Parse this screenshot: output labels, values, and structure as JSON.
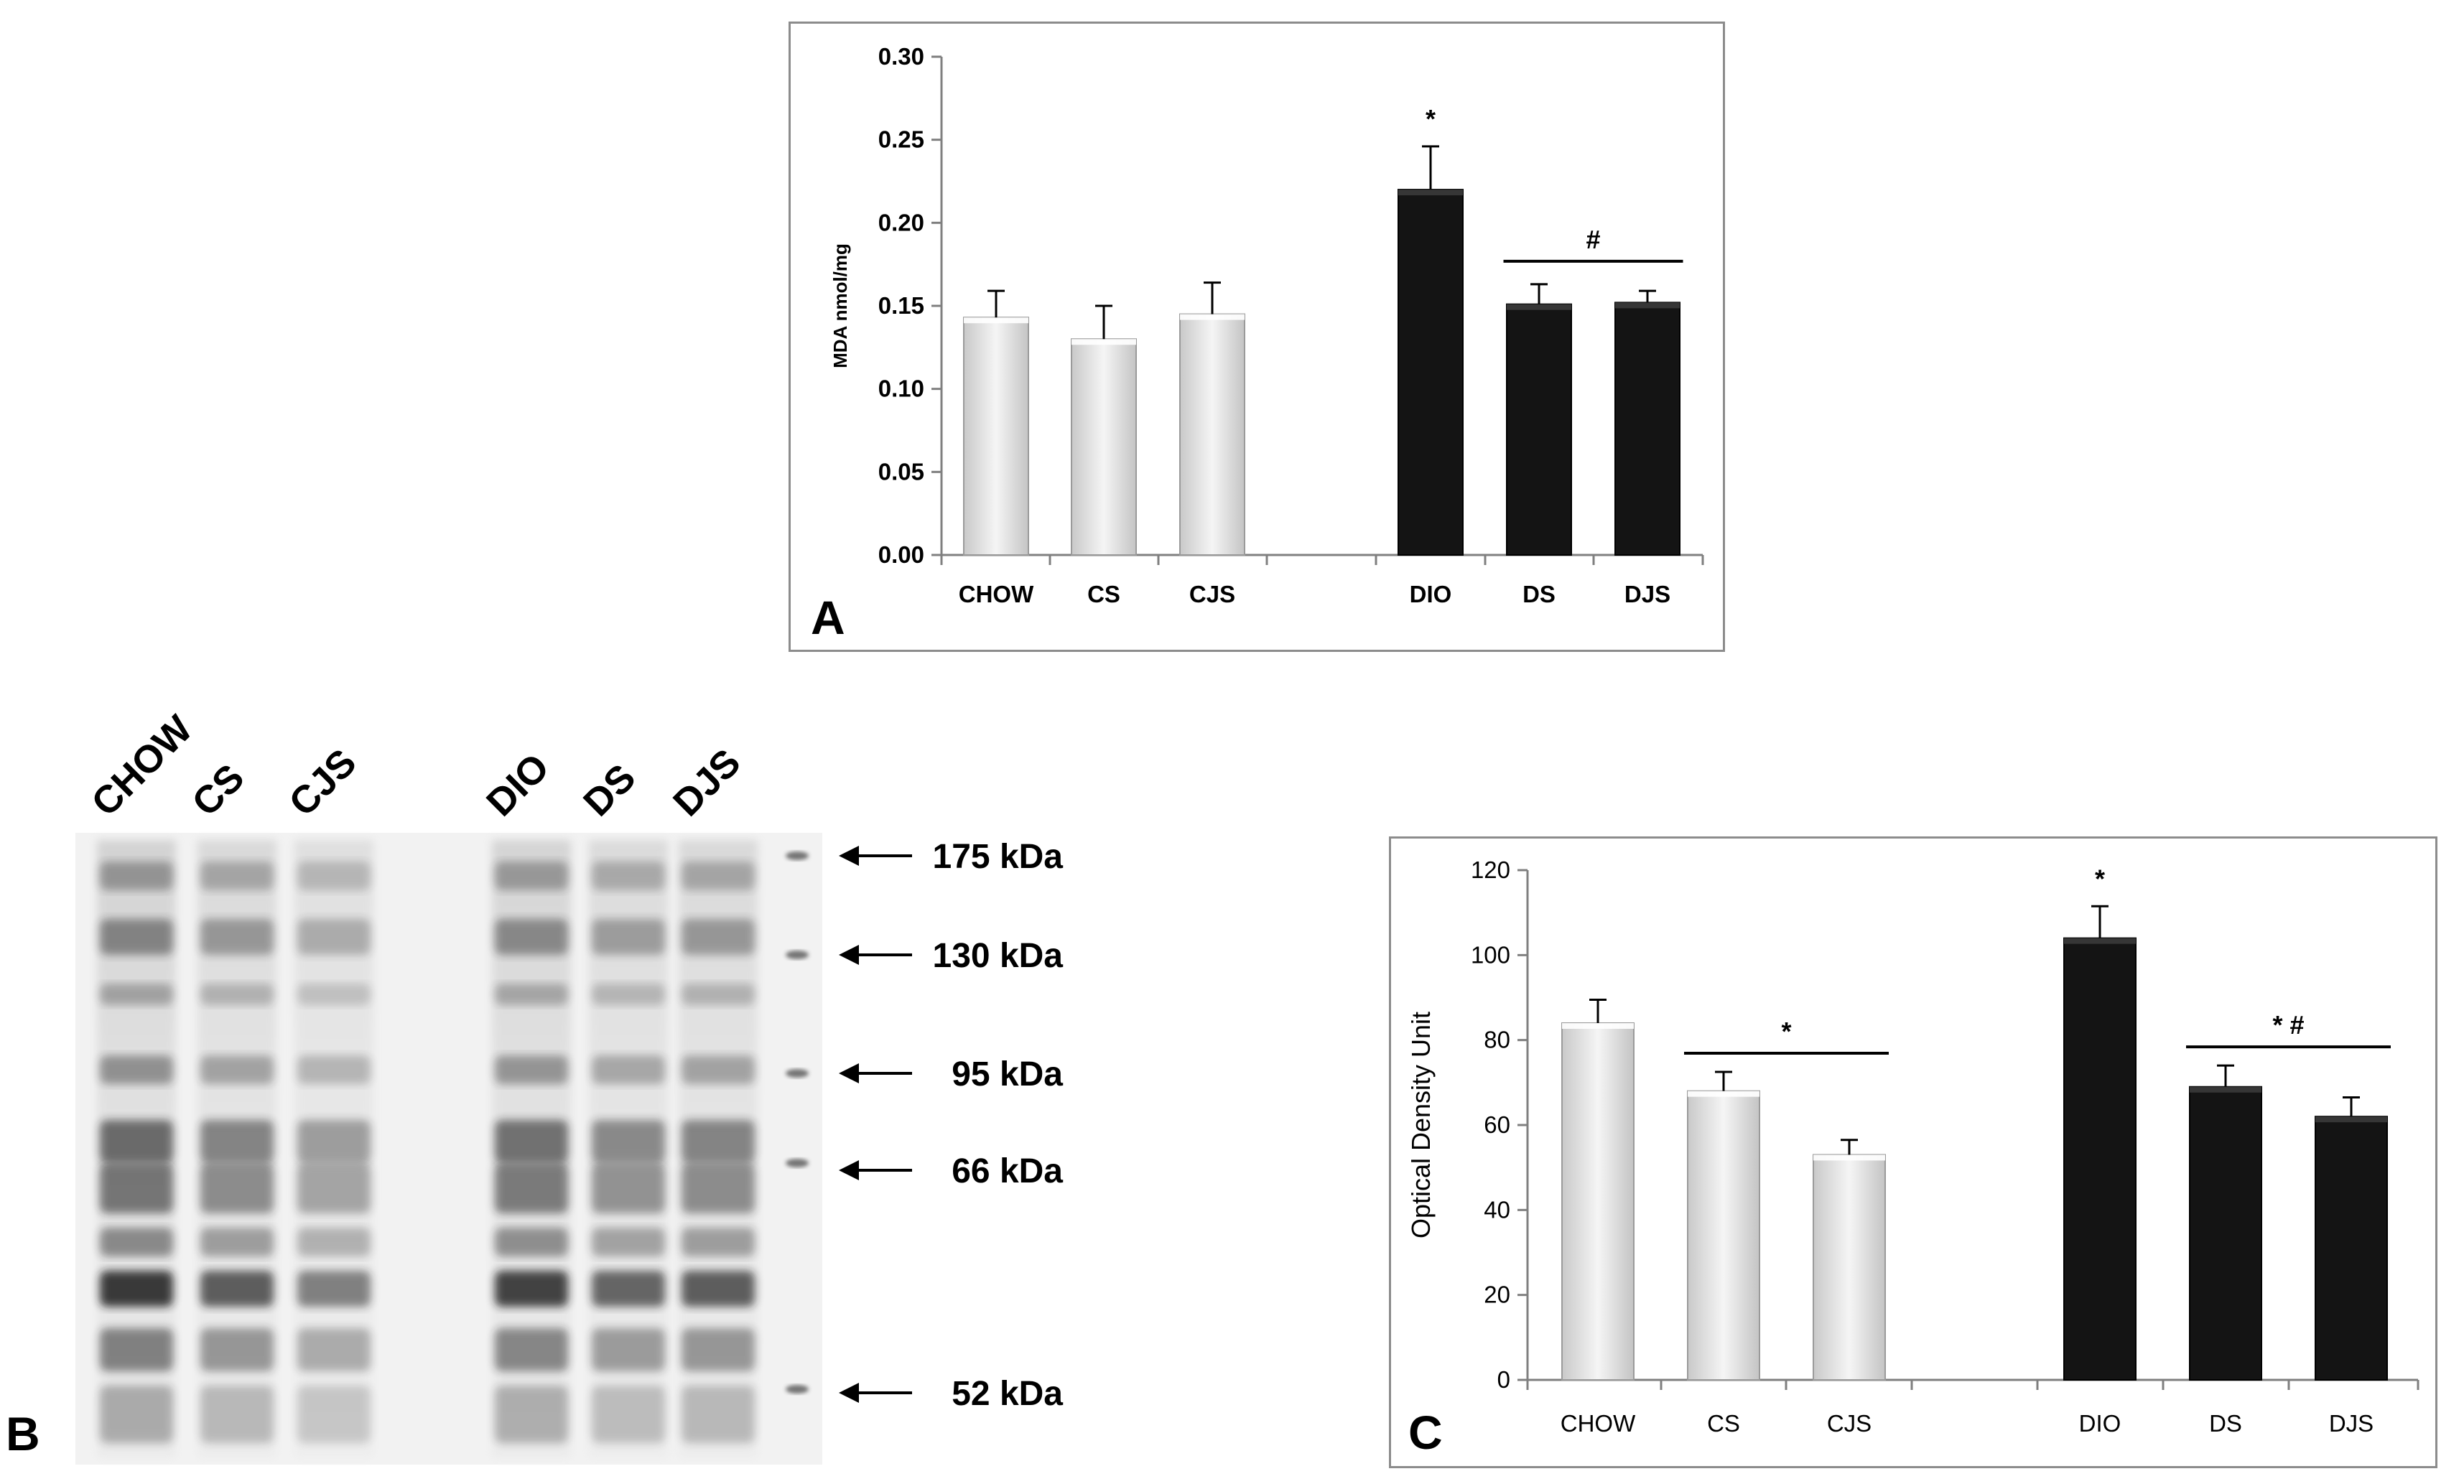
{
  "colors": {
    "chow_group": "#e6e6e6",
    "diet_group": "#141414",
    "axis": "#7f7f7f"
  },
  "chart_data": [
    {
      "panel": "A",
      "type": "bar",
      "ylabel": "MDA nmol/mg",
      "ylim": [
        0,
        0.3
      ],
      "yticks": [
        "0.00",
        "0.05",
        "0.10",
        "0.15",
        "0.20",
        "0.25",
        "0.30"
      ],
      "categories": [
        "CHOW",
        "CS",
        "CJS",
        "DIO",
        "DS",
        "DJS"
      ],
      "values": [
        0.143,
        0.13,
        0.145,
        0.22,
        0.151,
        0.152
      ],
      "errors": [
        0.016,
        0.02,
        0.019,
        0.026,
        0.012,
        0.007
      ],
      "annotations": [
        {
          "text": "*",
          "over": "DIO"
        },
        {
          "text": "#",
          "span": [
            "DS",
            "DJS"
          ]
        }
      ]
    },
    {
      "panel": "C",
      "type": "bar",
      "ylabel": "Optical Density Unit",
      "ylim": [
        0,
        120
      ],
      "yticks": [
        "0",
        "20",
        "40",
        "60",
        "80",
        "100",
        "120"
      ],
      "categories": [
        "CHOW",
        "CS",
        "CJS",
        "DIO",
        "DS",
        "DJS"
      ],
      "values": [
        84,
        68,
        53,
        104,
        69,
        62
      ],
      "errors": [
        5.5,
        4.5,
        3.5,
        7.5,
        5.0,
        4.5
      ],
      "annotations": [
        {
          "text": "*",
          "over": "DIO"
        },
        {
          "text": "*",
          "span": [
            "CS",
            "CJS"
          ]
        },
        {
          "text": "* #",
          "span": [
            "DS",
            "DJS"
          ]
        }
      ]
    }
  ],
  "blot": {
    "panel": "B",
    "lane_labels": [
      "CHOW",
      "CS",
      "CJS",
      "DIO",
      "DS",
      "DJS"
    ],
    "markers": [
      "175 kDa",
      "130 kDa",
      "95 kDa",
      "66 kDa",
      "52 kDa"
    ]
  }
}
